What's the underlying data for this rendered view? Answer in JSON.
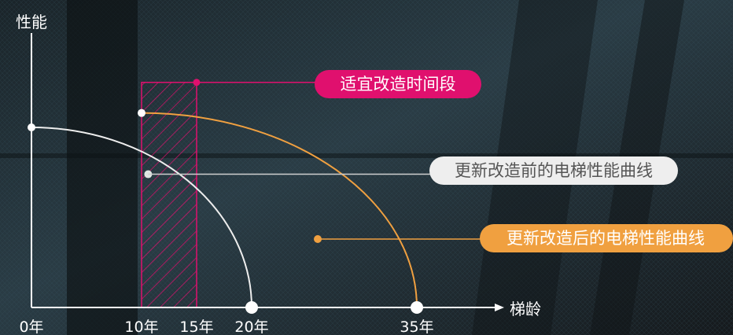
{
  "chart_data": {
    "type": "line",
    "ylabel": "性能",
    "xlabel": "梯龄",
    "x_ticks": [
      {
        "value": 0,
        "label": "0年"
      },
      {
        "value": 10,
        "label": "10年"
      },
      {
        "value": 15,
        "label": "15年"
      },
      {
        "value": 20,
        "label": "20年"
      },
      {
        "value": 35,
        "label": "35年"
      }
    ],
    "xlim": [
      0,
      40
    ],
    "ylim": [
      0,
      100
    ],
    "series": [
      {
        "name": "更新改造前的电梯性能曲线",
        "color": "#eeeeee",
        "curve": "quarter-ellipse",
        "points": [
          {
            "x": 0,
            "y": 100
          },
          {
            "x": 20,
            "y": 0
          }
        ],
        "marker": {
          "x": 10.6,
          "y": 74
        }
      },
      {
        "name": "更新改造后的电梯性能曲线",
        "color": "#f0a040",
        "curve": "quarter-ellipse",
        "points": [
          {
            "x": 10,
            "y": 108
          },
          {
            "x": 35,
            "y": 0
          }
        ],
        "marker": {
          "x": 26,
          "y": 38
        }
      }
    ],
    "highlight_region": {
      "label": "适宜改造时间段",
      "x_range": [
        10,
        15
      ],
      "y_top": 125,
      "color": "#e0106e"
    }
  },
  "labels": {
    "highlight": "适宜改造时间段",
    "before": "更新改造前的电梯性能曲线",
    "after": "更新改造后的电梯性能曲线"
  },
  "colors": {
    "axis": "#ffffff",
    "magenta": "#e0106e",
    "orange": "#f0a040",
    "before_label_bg": "#eeeeee",
    "before_label_text": "#555555"
  }
}
